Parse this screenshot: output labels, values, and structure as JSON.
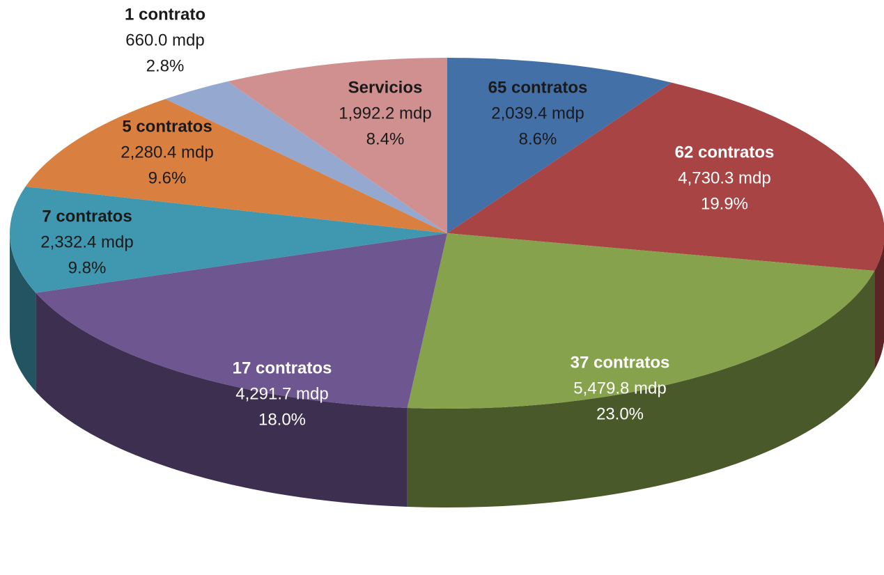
{
  "chart_data": {
    "type": "pie3d",
    "categories": [
      "65 contratos",
      "62 contratos",
      "37 contratos",
      "17 contratos",
      "7 contratos",
      "5 contratos",
      "1 contrato",
      "Servicios"
    ],
    "values": [
      2039.4,
      4730.3,
      5479.8,
      4291.7,
      2332.4,
      2280.4,
      660.0,
      1992.2
    ],
    "value_labels": [
      "2,039.4 mdp",
      "4,730.3 mdp",
      "5,479.8 mdp",
      "4,291.7 mdp",
      "2,332.4 mdp",
      "2,280.4 mdp",
      "660.0 mdp",
      "1,992.2 mdp"
    ],
    "percents": [
      8.6,
      19.9,
      23.0,
      18.0,
      9.8,
      9.6,
      2.8,
      8.4
    ],
    "percent_labels": [
      "8.6%",
      "19.9%",
      "23.0%",
      "18.0%",
      "9.8%",
      "9.6%",
      "2.8%",
      "8.4%"
    ],
    "colors": [
      "#4470a8",
      "#a84444",
      "#87a24c",
      "#6e5690",
      "#4098b0",
      "#d98040",
      "#94a8d0",
      "#d09090"
    ]
  }
}
